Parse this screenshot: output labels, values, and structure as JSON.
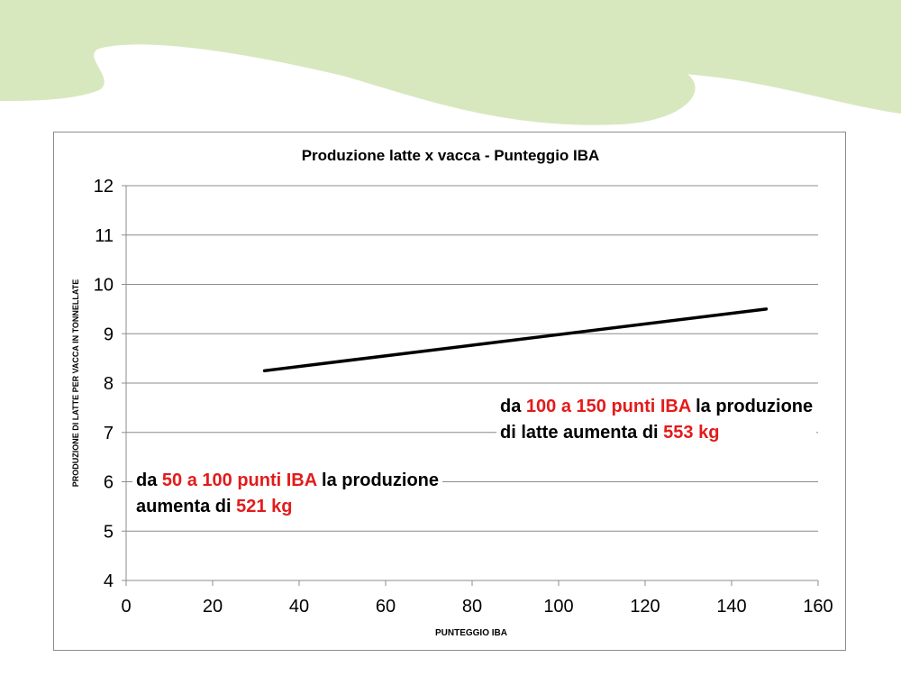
{
  "theme": {
    "wave_color": "#d7e8bf",
    "line_color": "#000000",
    "highlight_color": "#e31b1b",
    "grid_color": "#8c8c8c"
  },
  "chart_data": {
    "type": "line",
    "title": "Produzione latte x vacca - Punteggio IBA",
    "xlabel": "PUNTEGGIO IBA",
    "ylabel": "PRODUZIONE DI LATTE PER VACCA IN TONNELLATE",
    "xlim": [
      0,
      160
    ],
    "ylim": [
      4,
      12
    ],
    "xticks": [
      0,
      20,
      40,
      60,
      80,
      100,
      120,
      140,
      160
    ],
    "yticks": [
      4,
      5,
      6,
      7,
      8,
      9,
      10,
      11,
      12
    ],
    "grid": "horizontal",
    "series": [
      {
        "x": [
          32,
          148
        ],
        "y": [
          8.25,
          9.5
        ]
      }
    ]
  },
  "annotations": {
    "first": {
      "line1_pre": "da ",
      "line1_hl": "50 a 100 punti IBA",
      "line1_post": " la produzione",
      "line2_pre": "aumenta di ",
      "line2_hl": "521 kg"
    },
    "second": {
      "line1_pre": "da ",
      "line1_hl": "100 a 150 punti IBA",
      "line1_post": " la produzione",
      "line2_pre": "di latte aumenta di ",
      "line2_hl": "553 kg"
    }
  }
}
